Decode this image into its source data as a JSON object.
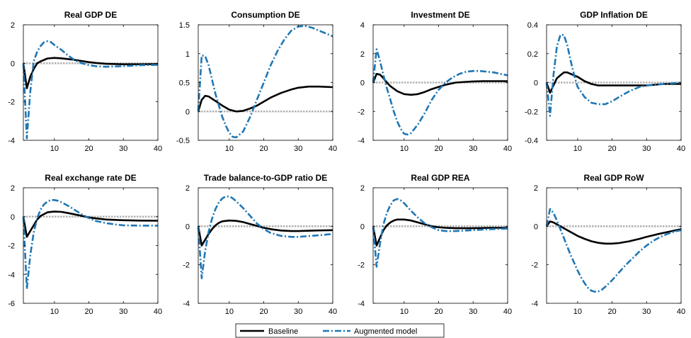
{
  "colors": {
    "baseline": "#000000",
    "augmented": "#1f77b4",
    "zero_line": "#b3b3b3",
    "axis": "#000000"
  },
  "legend": {
    "placement": "bottom-center",
    "entries": [
      "Baseline",
      "Augmented model"
    ]
  },
  "chart_data": [
    {
      "type": "line",
      "title": "Real GDP DE",
      "xlim": [
        1,
        40
      ],
      "ylim": [
        -4,
        2
      ],
      "xticks": [
        10,
        20,
        30,
        40
      ],
      "yticks": [
        -4,
        -2,
        0,
        2
      ],
      "series": [
        {
          "name": "Baseline",
          "x": [
            1,
            2,
            3,
            4,
            5,
            6,
            8,
            10,
            12,
            15,
            18,
            20,
            22,
            25,
            30,
            35,
            40
          ],
          "y": [
            0,
            -1.3,
            -0.7,
            -0.3,
            0,
            0.1,
            0.25,
            0.28,
            0.26,
            0.2,
            0.12,
            0.06,
            0.02,
            -0.03,
            -0.05,
            -0.05,
            -0.04
          ]
        },
        {
          "name": "Augmented model",
          "x": [
            1,
            2,
            3,
            4,
            5,
            6,
            7,
            8,
            9,
            10,
            12,
            14,
            16,
            18,
            20,
            22,
            25,
            30,
            35,
            40
          ],
          "y": [
            0,
            -3.9,
            -1.5,
            0.1,
            0.6,
            0.9,
            1.1,
            1.15,
            1.1,
            0.95,
            0.7,
            0.4,
            0.15,
            0,
            -0.1,
            -0.15,
            -0.18,
            -0.15,
            -0.1,
            -0.08
          ]
        }
      ]
    },
    {
      "type": "line",
      "title": "Consumption DE",
      "xlim": [
        1,
        40
      ],
      "ylim": [
        -0.5,
        1.5
      ],
      "xticks": [
        10,
        20,
        30,
        40
      ],
      "yticks": [
        -0.5,
        0,
        0.5,
        1,
        1.5
      ],
      "series": [
        {
          "name": "Baseline",
          "x": [
            1,
            2,
            3,
            4,
            6,
            8,
            10,
            12,
            14,
            16,
            18,
            20,
            22,
            25,
            28,
            30,
            33,
            36,
            40
          ],
          "y": [
            0,
            0.2,
            0.27,
            0.26,
            0.18,
            0.1,
            0.03,
            0,
            0.01,
            0.05,
            0.1,
            0.17,
            0.24,
            0.32,
            0.38,
            0.41,
            0.43,
            0.43,
            0.42
          ]
        },
        {
          "name": "Augmented model",
          "x": [
            1,
            2,
            3,
            4,
            5,
            6,
            7,
            8,
            9,
            10,
            11,
            12,
            14,
            16,
            18,
            20,
            22,
            24,
            26,
            28,
            30,
            32,
            34,
            36,
            38,
            40
          ],
          "y": [
            0,
            0.97,
            0.96,
            0.8,
            0.55,
            0.3,
            0.1,
            -0.1,
            -0.25,
            -0.37,
            -0.44,
            -0.45,
            -0.35,
            -0.1,
            0.2,
            0.5,
            0.8,
            1.05,
            1.25,
            1.4,
            1.47,
            1.48,
            1.45,
            1.4,
            1.35,
            1.3
          ]
        }
      ]
    },
    {
      "type": "line",
      "title": "Investment DE",
      "xlim": [
        1,
        40
      ],
      "ylim": [
        -4,
        4
      ],
      "xticks": [
        10,
        20,
        30,
        40
      ],
      "yticks": [
        -4,
        -2,
        0,
        2,
        4
      ],
      "series": [
        {
          "name": "Baseline",
          "x": [
            1,
            2,
            3,
            4,
            5,
            6,
            8,
            10,
            12,
            14,
            16,
            18,
            20,
            22,
            25,
            28,
            30,
            33,
            36,
            40
          ],
          "y": [
            0,
            0.6,
            0.55,
            0.3,
            0,
            -0.25,
            -0.6,
            -0.8,
            -0.85,
            -0.8,
            -0.65,
            -0.45,
            -0.3,
            -0.15,
            0,
            0.05,
            0.08,
            0.1,
            0.1,
            0.1
          ]
        },
        {
          "name": "Augmented model",
          "x": [
            1,
            2,
            3,
            4,
            5,
            6,
            7,
            8,
            9,
            10,
            11,
            12,
            14,
            16,
            18,
            20,
            22,
            24,
            26,
            28,
            30,
            32,
            34,
            36,
            38,
            40
          ],
          "y": [
            0,
            2.3,
            1.5,
            0.5,
            -0.4,
            -1.2,
            -2,
            -2.7,
            -3.2,
            -3.55,
            -3.6,
            -3.5,
            -2.9,
            -2.1,
            -1.2,
            -0.5,
            0,
            0.35,
            0.6,
            0.75,
            0.8,
            0.8,
            0.75,
            0.7,
            0.6,
            0.5
          ]
        }
      ]
    },
    {
      "type": "line",
      "title": "GDP Inflation DE",
      "xlim": [
        1,
        40
      ],
      "ylim": [
        -0.4,
        0.4
      ],
      "xticks": [
        10,
        20,
        30,
        40
      ],
      "yticks": [
        -0.4,
        -0.2,
        0,
        0.2,
        0.4
      ],
      "series": [
        {
          "name": "Baseline",
          "x": [
            1,
            2,
            3,
            4,
            5,
            6,
            7,
            8,
            10,
            12,
            14,
            16,
            18,
            20,
            25,
            30,
            35,
            40
          ],
          "y": [
            0,
            -0.07,
            -0.02,
            0.03,
            0.05,
            0.07,
            0.07,
            0.06,
            0.04,
            0.01,
            -0.01,
            -0.02,
            -0.02,
            -0.02,
            -0.02,
            -0.02,
            -0.01,
            -0.01
          ]
        },
        {
          "name": "Augmented model",
          "x": [
            1,
            2,
            3,
            4,
            5,
            6,
            7,
            8,
            9,
            10,
            12,
            14,
            16,
            18,
            20,
            22,
            25,
            28,
            30,
            35,
            40
          ],
          "y": [
            0,
            -0.23,
            0.05,
            0.25,
            0.33,
            0.33,
            0.26,
            0.15,
            0.05,
            -0.03,
            -0.1,
            -0.14,
            -0.15,
            -0.15,
            -0.13,
            -0.1,
            -0.06,
            -0.03,
            -0.02,
            -0.01,
            0
          ]
        }
      ]
    },
    {
      "type": "line",
      "title": "Real exchange rate DE",
      "xlim": [
        1,
        40
      ],
      "ylim": [
        -6,
        2
      ],
      "xticks": [
        10,
        20,
        30,
        40
      ],
      "yticks": [
        -6,
        -4,
        -2,
        0,
        2
      ],
      "series": [
        {
          "name": "Baseline",
          "x": [
            1,
            2,
            3,
            4,
            5,
            6,
            8,
            10,
            12,
            14,
            16,
            18,
            20,
            22,
            25,
            30,
            35,
            40
          ],
          "y": [
            0,
            -1.4,
            -1,
            -0.6,
            -0.2,
            0.05,
            0.3,
            0.35,
            0.33,
            0.25,
            0.15,
            0.05,
            -0.05,
            -0.12,
            -0.2,
            -0.25,
            -0.27,
            -0.28
          ]
        },
        {
          "name": "Augmented model",
          "x": [
            1,
            2,
            3,
            4,
            5,
            6,
            7,
            8,
            9,
            10,
            11,
            12,
            14,
            16,
            18,
            20,
            22,
            25,
            28,
            30,
            35,
            40
          ],
          "y": [
            0,
            -5,
            -2.7,
            -1.1,
            -0.1,
            0.5,
            0.85,
            1.05,
            1.15,
            1.15,
            1.1,
            1,
            0.75,
            0.45,
            0.15,
            -0.1,
            -0.3,
            -0.45,
            -0.55,
            -0.6,
            -0.62,
            -0.62
          ]
        }
      ]
    },
    {
      "type": "line",
      "title": "Trade balance-to-GDP ratio DE",
      "xlim": [
        1,
        40
      ],
      "ylim": [
        -4,
        2
      ],
      "xticks": [
        10,
        20,
        30,
        40
      ],
      "yticks": [
        -4,
        -2,
        0,
        2
      ],
      "series": [
        {
          "name": "Baseline",
          "x": [
            1,
            2,
            3,
            4,
            5,
            6,
            7,
            8,
            10,
            12,
            14,
            16,
            18,
            20,
            22,
            25,
            28,
            30,
            35,
            40
          ],
          "y": [
            0,
            -1,
            -0.7,
            -0.4,
            -0.15,
            0.05,
            0.18,
            0.26,
            0.3,
            0.28,
            0.22,
            0.12,
            0.02,
            -0.08,
            -0.15,
            -0.22,
            -0.25,
            -0.25,
            -0.22,
            -0.2
          ]
        },
        {
          "name": "Augmented model",
          "x": [
            1,
            2,
            3,
            4,
            5,
            6,
            7,
            8,
            9,
            10,
            11,
            12,
            14,
            16,
            18,
            20,
            22,
            25,
            28,
            30,
            35,
            40
          ],
          "y": [
            0,
            -2.7,
            -1.3,
            -0.3,
            0.4,
            0.9,
            1.25,
            1.45,
            1.55,
            1.55,
            1.45,
            1.3,
            0.95,
            0.55,
            0.15,
            -0.15,
            -0.35,
            -0.5,
            -0.55,
            -0.55,
            -0.48,
            -0.4
          ]
        }
      ]
    },
    {
      "type": "line",
      "title": "Real GDP REA",
      "xlim": [
        1,
        40
      ],
      "ylim": [
        -4,
        2
      ],
      "xticks": [
        10,
        20,
        30,
        40
      ],
      "yticks": [
        -4,
        -2,
        0,
        2
      ],
      "series": [
        {
          "name": "Baseline",
          "x": [
            1,
            2,
            3,
            4,
            5,
            6,
            7,
            8,
            10,
            12,
            14,
            16,
            18,
            20,
            22,
            25,
            30,
            35,
            40
          ],
          "y": [
            0,
            -1,
            -0.6,
            -0.2,
            0.05,
            0.2,
            0.3,
            0.35,
            0.35,
            0.3,
            0.2,
            0.1,
            0,
            -0.05,
            -0.08,
            -0.1,
            -0.1,
            -0.08,
            -0.08
          ]
        },
        {
          "name": "Augmented model",
          "x": [
            1,
            2,
            3,
            4,
            5,
            6,
            7,
            8,
            9,
            10,
            11,
            12,
            14,
            16,
            18,
            20,
            22,
            25,
            28,
            30,
            35,
            40
          ],
          "y": [
            0,
            -2.1,
            -0.9,
            0.1,
            0.7,
            1.1,
            1.35,
            1.42,
            1.35,
            1.2,
            1,
            0.8,
            0.45,
            0.15,
            -0.05,
            -0.2,
            -0.25,
            -0.25,
            -0.22,
            -0.2,
            -0.15,
            -0.12
          ]
        }
      ]
    },
    {
      "type": "line",
      "title": "Real GDP RoW",
      "xlim": [
        1,
        40
      ],
      "ylim": [
        -4,
        2
      ],
      "xticks": [
        10,
        20,
        30,
        40
      ],
      "yticks": [
        -4,
        -2,
        0,
        2
      ],
      "series": [
        {
          "name": "Baseline",
          "x": [
            1,
            2,
            3,
            4,
            5,
            6,
            8,
            10,
            12,
            14,
            16,
            18,
            20,
            22,
            25,
            28,
            30,
            33,
            36,
            40
          ],
          "y": [
            0,
            0.25,
            0.2,
            0.1,
            0,
            -0.1,
            -0.3,
            -0.5,
            -0.65,
            -0.78,
            -0.86,
            -0.9,
            -0.9,
            -0.87,
            -0.78,
            -0.65,
            -0.55,
            -0.42,
            -0.3,
            -0.15
          ]
        },
        {
          "name": "Augmented model",
          "x": [
            1,
            2,
            3,
            4,
            5,
            6,
            7,
            8,
            9,
            10,
            11,
            12,
            13,
            14,
            15,
            16,
            17,
            18,
            20,
            22,
            24,
            26,
            28,
            30,
            32,
            34,
            36,
            38,
            40
          ],
          "y": [
            0,
            0.9,
            0.7,
            0.3,
            -0.15,
            -0.6,
            -1.05,
            -1.5,
            -1.9,
            -2.3,
            -2.65,
            -2.95,
            -3.2,
            -3.35,
            -3.4,
            -3.38,
            -3.3,
            -3.15,
            -2.8,
            -2.4,
            -2,
            -1.65,
            -1.3,
            -1,
            -0.75,
            -0.55,
            -0.4,
            -0.28,
            -0.2
          ]
        }
      ]
    }
  ]
}
